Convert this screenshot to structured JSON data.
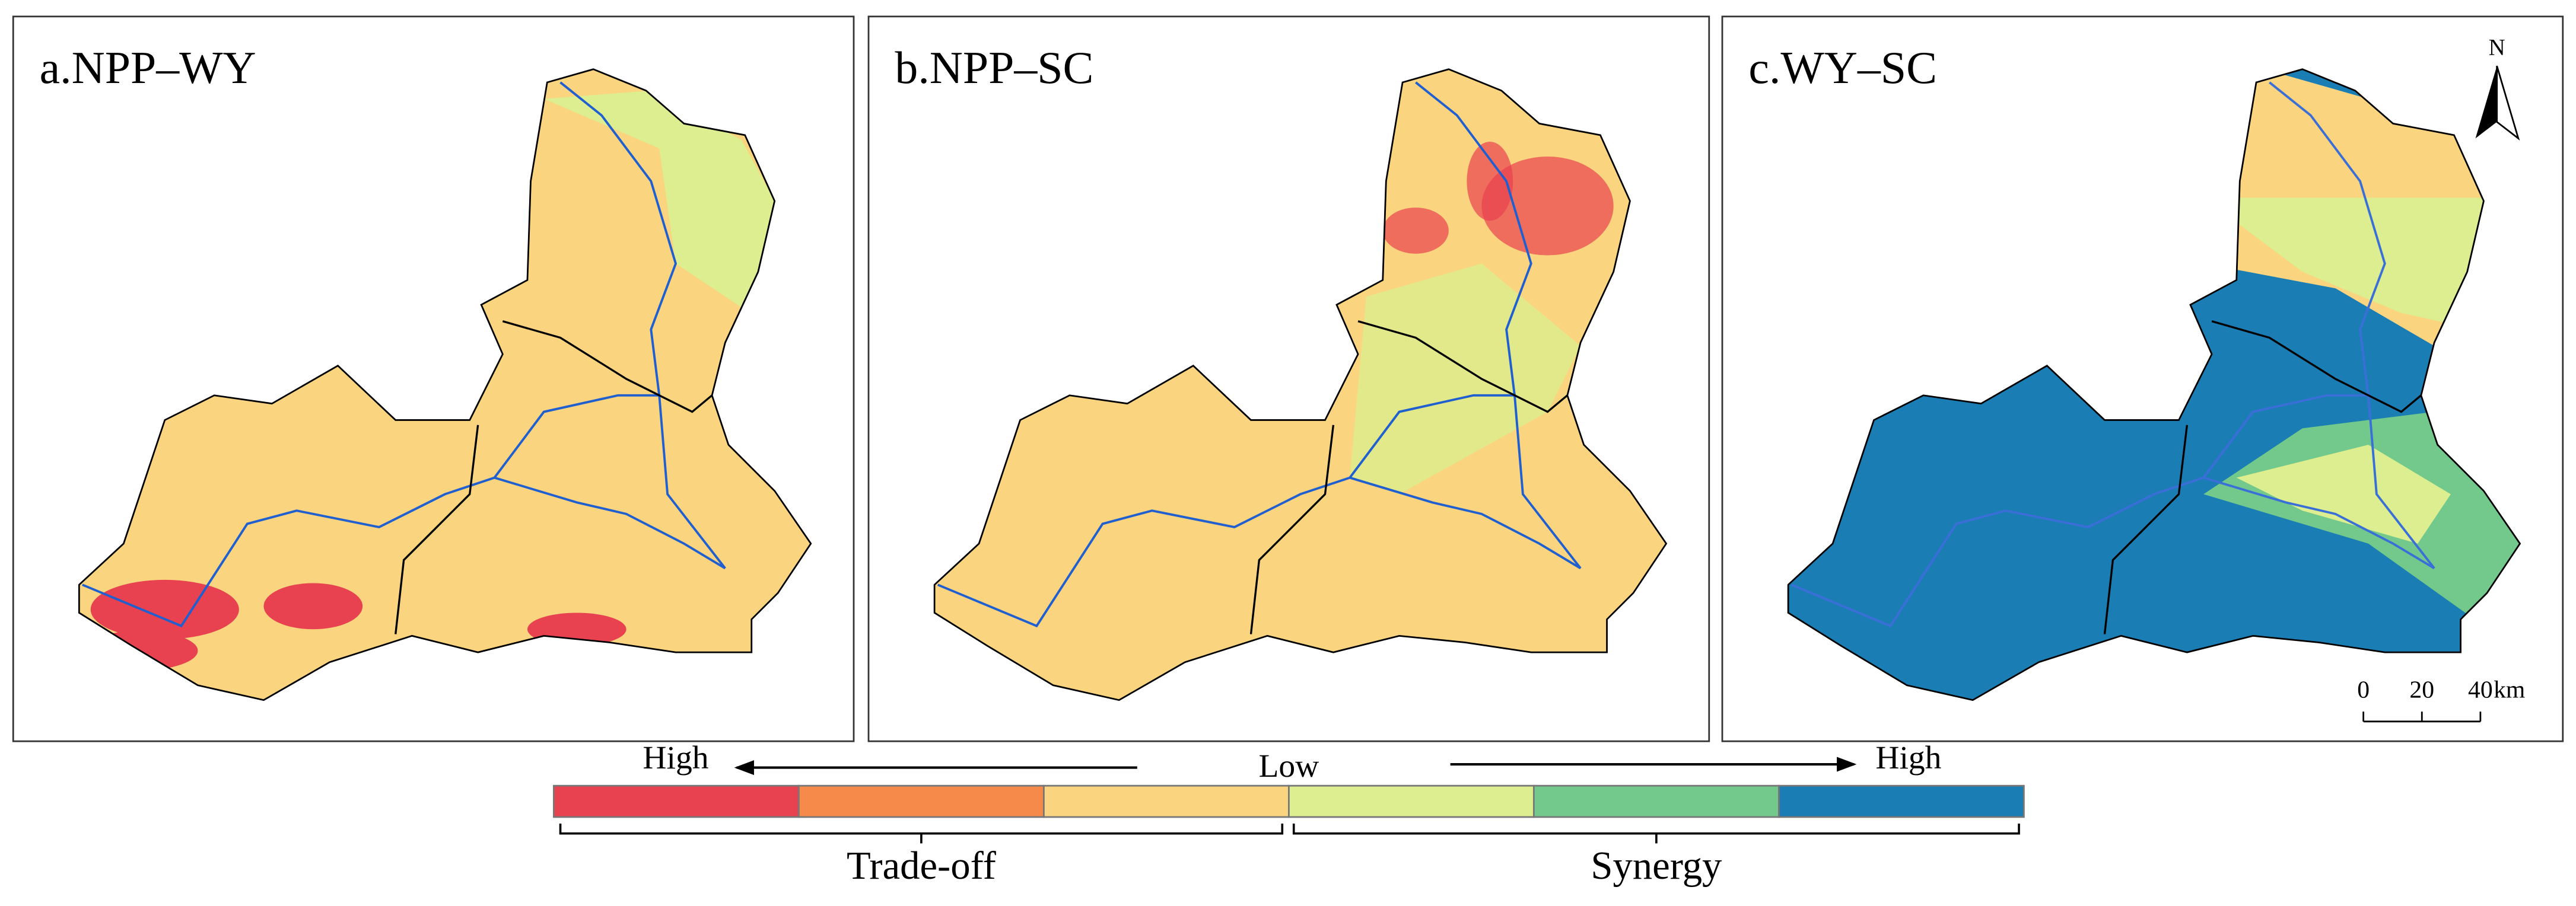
{
  "panels": [
    {
      "label": "a.NPP–WY"
    },
    {
      "label": "b.NPP–SC"
    },
    {
      "label": "c.WY–SC"
    }
  ],
  "north_label": "N",
  "scale_bar": {
    "ticks": [
      0,
      20,
      40
    ],
    "unit": "km"
  },
  "legend": {
    "left_label": "High",
    "center_label": "Low",
    "right_label": "High",
    "colors": [
      "#e8414f",
      "#f58a4b",
      "#fad47f",
      "#dcee8f",
      "#72c98b",
      "#1a7db4"
    ],
    "groups": [
      "Trade-off",
      "Synergy"
    ]
  }
}
